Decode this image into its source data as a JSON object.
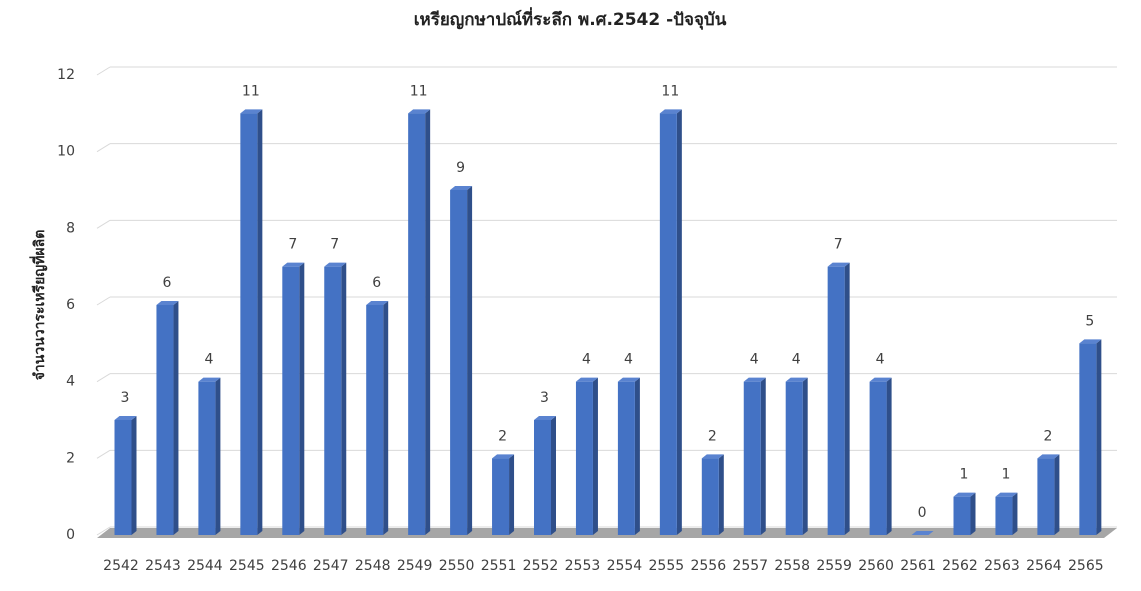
{
  "chart_data": {
    "type": "bar3d",
    "title": "เหรียญกษาปณ์ที่ระลึก พ.ศ.2542 -ปัจจุบัน",
    "y_label": "จำนวนวาระเหรียญที่ผลิต",
    "categories": [
      "2542",
      "2543",
      "2544",
      "2545",
      "2546",
      "2547",
      "2548",
      "2549",
      "2550",
      "2551",
      "2552",
      "2553",
      "2554",
      "2555",
      "2556",
      "2557",
      "2558",
      "2559",
      "2560",
      "2561",
      "2562",
      "2563",
      "2564",
      "2565"
    ],
    "values": [
      3,
      6,
      4,
      11,
      7,
      7,
      6,
      11,
      9,
      2,
      3,
      4,
      4,
      11,
      2,
      4,
      4,
      7,
      4,
      0,
      1,
      1,
      2,
      5
    ],
    "color": "#4472c4",
    "ylim": [
      0,
      12
    ],
    "yticks": [
      0,
      2,
      4,
      6,
      8,
      10,
      12
    ],
    "grid": true,
    "data_labels": true
  }
}
